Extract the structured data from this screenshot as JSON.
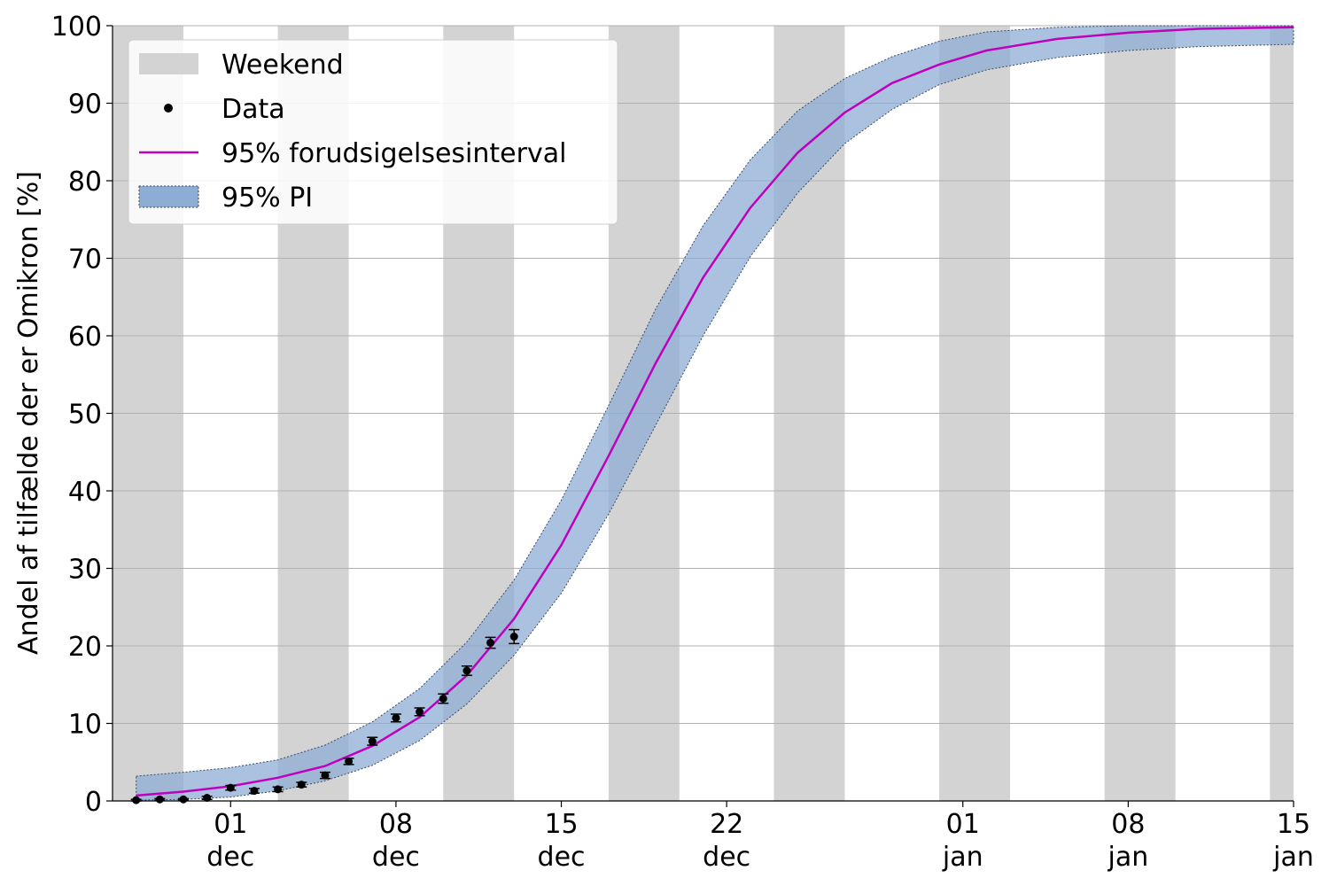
{
  "chart_data": {
    "type": "line",
    "xlabel": "",
    "ylabel": "Andel af tilfælde der er Omikron [%]",
    "ylim": [
      0,
      100
    ],
    "xlim": [
      "2021-11-26",
      "2022-01-15"
    ],
    "grid": "horizontal",
    "legend_position": "top-left",
    "yticks": [
      0,
      10,
      20,
      30,
      40,
      50,
      60,
      70,
      80,
      90,
      100
    ],
    "xticks": [
      {
        "date": "2021-12-01",
        "day": "01",
        "month": "dec"
      },
      {
        "date": "2021-12-08",
        "day": "08",
        "month": "dec"
      },
      {
        "date": "2021-12-15",
        "day": "15",
        "month": "dec"
      },
      {
        "date": "2021-12-22",
        "day": "22",
        "month": "dec"
      },
      {
        "date": "2022-01-01",
        "day": "01",
        "month": "jan"
      },
      {
        "date": "2022-01-08",
        "day": "08",
        "month": "jan"
      },
      {
        "date": "2022-01-15",
        "day": "15",
        "month": "jan"
      }
    ],
    "legend": [
      {
        "label": "Weekend",
        "kind": "patch",
        "color": "#d3d3d3"
      },
      {
        "label": "Data",
        "kind": "marker",
        "color": "#000000"
      },
      {
        "label": "95% forudsigelsesinterval",
        "kind": "line",
        "color": "#bf00bf"
      },
      {
        "label": "95% PI",
        "kind": "band",
        "color": "#8eadd4"
      }
    ],
    "weekends": [
      [
        "2021-11-26",
        "2021-11-28"
      ],
      [
        "2021-12-03",
        "2021-12-05"
      ],
      [
        "2021-12-10",
        "2021-12-12"
      ],
      [
        "2021-12-17",
        "2021-12-19"
      ],
      [
        "2021-12-24",
        "2021-12-26"
      ],
      [
        "2021-12-31",
        "2022-01-02"
      ],
      [
        "2022-01-07",
        "2022-01-09"
      ],
      [
        "2022-01-14",
        "2022-01-15"
      ]
    ],
    "series": [
      {
        "name": "Data",
        "type": "scatter",
        "color": "#000000",
        "points": [
          {
            "x": "2021-11-27",
            "y": 0.1,
            "err": 0.1
          },
          {
            "x": "2021-11-28",
            "y": 0.2,
            "err": 0.1
          },
          {
            "x": "2021-11-29",
            "y": 0.2,
            "err": 0.1
          },
          {
            "x": "2021-11-30",
            "y": 0.4,
            "err": 0.2
          },
          {
            "x": "2021-12-01",
            "y": 1.7,
            "err": 0.3
          },
          {
            "x": "2021-12-02",
            "y": 1.3,
            "err": 0.3
          },
          {
            "x": "2021-12-03",
            "y": 1.5,
            "err": 0.3
          },
          {
            "x": "2021-12-04",
            "y": 2.1,
            "err": 0.3
          },
          {
            "x": "2021-12-05",
            "y": 3.3,
            "err": 0.4
          },
          {
            "x": "2021-12-06",
            "y": 5.1,
            "err": 0.4
          },
          {
            "x": "2021-12-07",
            "y": 7.7,
            "err": 0.5
          },
          {
            "x": "2021-12-08",
            "y": 10.7,
            "err": 0.5
          },
          {
            "x": "2021-12-09",
            "y": 11.5,
            "err": 0.5
          },
          {
            "x": "2021-12-10",
            "y": 13.2,
            "err": 0.6
          },
          {
            "x": "2021-12-11",
            "y": 16.8,
            "err": 0.6
          },
          {
            "x": "2021-12-12",
            "y": 20.4,
            "err": 0.7
          },
          {
            "x": "2021-12-13",
            "y": 21.2,
            "err": 0.9
          }
        ]
      },
      {
        "name": "95% forudsigelsesinterval",
        "type": "line",
        "color": "#bf00bf",
        "points": [
          {
            "x": "2021-11-27",
            "y": 0.7
          },
          {
            "x": "2021-11-29",
            "y": 1.2
          },
          {
            "x": "2021-12-01",
            "y": 1.9
          },
          {
            "x": "2021-12-03",
            "y": 3.0
          },
          {
            "x": "2021-12-05",
            "y": 4.5
          },
          {
            "x": "2021-12-07",
            "y": 7.1
          },
          {
            "x": "2021-12-09",
            "y": 10.8
          },
          {
            "x": "2021-12-11",
            "y": 16.2
          },
          {
            "x": "2021-12-13",
            "y": 23.5
          },
          {
            "x": "2021-12-15",
            "y": 33.0
          },
          {
            "x": "2021-12-17",
            "y": 44.5
          },
          {
            "x": "2021-12-19",
            "y": 56.5
          },
          {
            "x": "2021-12-21",
            "y": 67.5
          },
          {
            "x": "2021-12-23",
            "y": 76.5
          },
          {
            "x": "2021-12-25",
            "y": 83.6
          },
          {
            "x": "2021-12-27",
            "y": 88.8
          },
          {
            "x": "2021-12-29",
            "y": 92.6
          },
          {
            "x": "2021-12-31",
            "y": 95.0
          },
          {
            "x": "2022-01-02",
            "y": 96.8
          },
          {
            "x": "2022-01-05",
            "y": 98.3
          },
          {
            "x": "2022-01-08",
            "y": 99.1
          },
          {
            "x": "2022-01-11",
            "y": 99.6
          },
          {
            "x": "2022-01-15",
            "y": 99.8
          }
        ]
      },
      {
        "name": "95% PI",
        "type": "band",
        "color": "#8eadd4",
        "points": [
          {
            "x": "2021-11-27",
            "lower": 0.1,
            "upper": 3.2
          },
          {
            "x": "2021-11-29",
            "lower": 0.2,
            "upper": 3.7
          },
          {
            "x": "2021-12-01",
            "lower": 0.5,
            "upper": 4.3
          },
          {
            "x": "2021-12-03",
            "lower": 1.3,
            "upper": 5.3
          },
          {
            "x": "2021-12-05",
            "lower": 2.6,
            "upper": 7.2
          },
          {
            "x": "2021-12-07",
            "lower": 4.6,
            "upper": 10.2
          },
          {
            "x": "2021-12-09",
            "lower": 7.8,
            "upper": 14.5
          },
          {
            "x": "2021-12-11",
            "lower": 12.5,
            "upper": 20.5
          },
          {
            "x": "2021-12-13",
            "lower": 18.8,
            "upper": 28.5
          },
          {
            "x": "2021-12-15",
            "lower": 26.8,
            "upper": 38.8
          },
          {
            "x": "2021-12-17",
            "lower": 37.0,
            "upper": 51.0
          },
          {
            "x": "2021-12-19",
            "lower": 48.5,
            "upper": 63.5
          },
          {
            "x": "2021-12-21",
            "lower": 60.0,
            "upper": 74.2
          },
          {
            "x": "2021-12-23",
            "lower": 70.2,
            "upper": 82.7
          },
          {
            "x": "2021-12-25",
            "lower": 78.4,
            "upper": 89.0
          },
          {
            "x": "2021-12-27",
            "lower": 84.8,
            "upper": 93.2
          },
          {
            "x": "2021-12-29",
            "lower": 89.2,
            "upper": 96.0
          },
          {
            "x": "2021-12-31",
            "lower": 92.4,
            "upper": 98.0
          },
          {
            "x": "2022-01-02",
            "lower": 94.3,
            "upper": 99.2
          },
          {
            "x": "2022-01-05",
            "lower": 95.9,
            "upper": 99.8
          },
          {
            "x": "2022-01-08",
            "lower": 96.8,
            "upper": 100.0
          },
          {
            "x": "2022-01-11",
            "lower": 97.3,
            "upper": 100.0
          },
          {
            "x": "2022-01-15",
            "lower": 97.6,
            "upper": 100.0
          }
        ]
      }
    ]
  }
}
